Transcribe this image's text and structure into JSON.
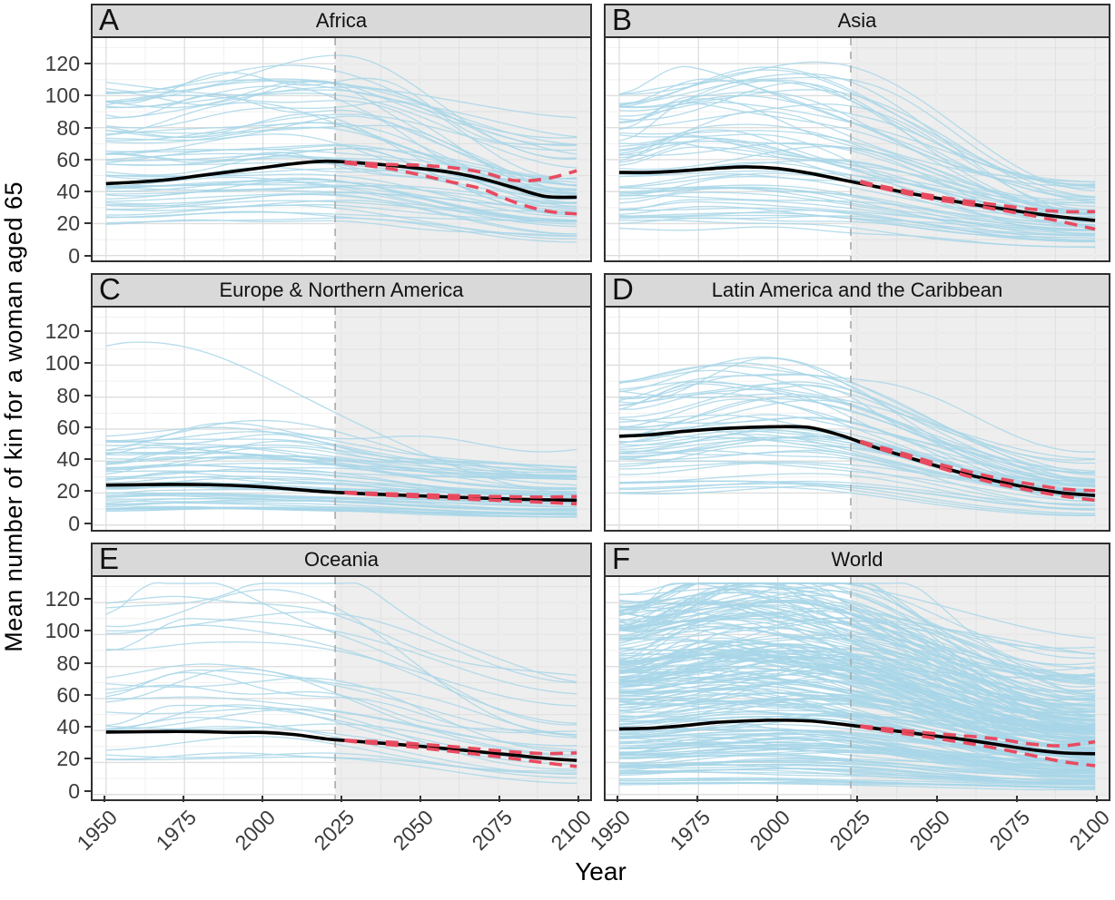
{
  "figure": {
    "ylabel": "Mean number of kin for a woman aged 65",
    "xlabel": "Year"
  },
  "axes": {
    "y_ticks": [
      0,
      20,
      40,
      60,
      80,
      100,
      120
    ],
    "x_ticks": [
      1950,
      1975,
      2000,
      2025,
      2050,
      2075,
      2100
    ],
    "x_range": [
      1950,
      2100
    ],
    "y_value_range": [
      -3,
      136
    ],
    "forecast_start": 2023,
    "grid": "major+minor"
  },
  "colors": {
    "country_line": "#a8d6e7",
    "mean_line": "#000000",
    "projection_bound": "#e84a5f",
    "strip_bg": "#d9d9d9",
    "panel_border": "#2f2f2f",
    "grid_major": "#dedede",
    "grid_minor": "#f1f1f1",
    "forecast_shade": "rgba(0,0,0,0.065)",
    "shade_grid": "rgba(255,255,255,0.55)",
    "forecast_divider": "#a8a8a8",
    "axis_text": "#3c3c3c"
  },
  "chart_data": [
    {
      "panel": "A",
      "title": "Africa",
      "type": "line",
      "x": [
        1950,
        1960,
        1970,
        1980,
        1990,
        2000,
        2010,
        2020,
        2030,
        2040,
        2050,
        2060,
        2070,
        2080,
        2090,
        2100
      ],
      "mean": [
        45,
        46,
        47.5,
        50,
        52.5,
        55,
        57.5,
        59,
        58,
        56.5,
        54.5,
        52,
        48,
        42.5,
        37,
        36.5
      ],
      "proj_years": [
        2026,
        2030,
        2040,
        2050,
        2060,
        2070,
        2080,
        2090,
        2100
      ],
      "upper": [
        58.5,
        58,
        57,
        56.5,
        55,
        52,
        47,
        48,
        53
      ],
      "lower": [
        58,
        57,
        54.5,
        50.5,
        46,
        41.5,
        33.5,
        28,
        26
      ],
      "ensemble": {
        "n": 58,
        "seed": 101,
        "start_min": 18,
        "start_max": 108,
        "start_bias": 1.0,
        "rise_max": 0.22,
        "peak_min": 1995,
        "peak_max": 2038,
        "end_min": 0.35,
        "end_max": 0.8
      }
    },
    {
      "panel": "B",
      "title": "Asia",
      "type": "line",
      "x": [
        1950,
        1960,
        1970,
        1980,
        1990,
        2000,
        2010,
        2020,
        2030,
        2040,
        2050,
        2060,
        2070,
        2080,
        2090,
        2100
      ],
      "mean": [
        52,
        52,
        53,
        54.5,
        55.5,
        54.5,
        51.5,
        47.5,
        43.5,
        39.5,
        36,
        32.5,
        29.5,
        26.5,
        24,
        22
      ],
      "proj_years": [
        2026,
        2030,
        2040,
        2050,
        2060,
        2070,
        2080,
        2090,
        2100
      ],
      "upper": [
        46.5,
        44.5,
        40.5,
        37,
        34,
        31.5,
        29,
        27.5,
        27.5
      ],
      "lower": [
        46,
        43.5,
        39,
        35,
        32,
        28.5,
        25,
        21,
        16.5
      ],
      "ensemble": {
        "n": 55,
        "seed": 202,
        "start_min": 12,
        "start_max": 100,
        "start_bias": 1.0,
        "rise_max": 0.25,
        "peak_min": 1970,
        "peak_max": 2012,
        "end_min": 0.22,
        "end_max": 0.55
      }
    },
    {
      "panel": "C",
      "title": "Europe & Northern America",
      "type": "line",
      "x": [
        1950,
        1960,
        1970,
        1980,
        1990,
        2000,
        2010,
        2020,
        2030,
        2040,
        2050,
        2060,
        2070,
        2080,
        2090,
        2100
      ],
      "mean": [
        25,
        25.2,
        25.4,
        25.3,
        24.8,
        23.8,
        22.3,
        20.8,
        19.8,
        19,
        18.2,
        17.5,
        16.8,
        16.2,
        15.8,
        15.5
      ],
      "proj_years": [
        2026,
        2030,
        2040,
        2050,
        2060,
        2070,
        2080,
        2090,
        2100
      ],
      "upper": [
        20.5,
        20.2,
        19.6,
        19,
        18.5,
        18,
        17.7,
        17.5,
        17.8
      ],
      "lower": [
        20.3,
        19.6,
        18.6,
        17.6,
        16.6,
        15.8,
        15,
        14.2,
        13.2
      ],
      "ensemble": {
        "n": 55,
        "seed": 303,
        "start_min": 9,
        "start_max": 58,
        "start_bias": 1.4,
        "rise_max": 0.18,
        "peak_min": 1960,
        "peak_max": 2000,
        "end_min": 0.45,
        "end_max": 0.8,
        "extra": [
          {
            "start": 112,
            "peak_year": 1956,
            "rise": 0.01,
            "end_frac": 0.18
          }
        ]
      }
    },
    {
      "panel": "D",
      "title": "Latin America and the Caribbean",
      "type": "line",
      "x": [
        1950,
        1960,
        1970,
        1980,
        1990,
        2000,
        2010,
        2020,
        2030,
        2040,
        2050,
        2060,
        2070,
        2080,
        2090,
        2100
      ],
      "mean": [
        55.5,
        56.5,
        58.5,
        60,
        61,
        61.5,
        61,
        56,
        49,
        43,
        37,
        31.5,
        27,
        23,
        20,
        18.5
      ],
      "proj_years": [
        2026,
        2030,
        2040,
        2050,
        2060,
        2070,
        2080,
        2090,
        2100
      ],
      "upper": [
        52.5,
        50,
        44.5,
        38.5,
        33.5,
        29,
        25.5,
        22.5,
        21.5
      ],
      "lower": [
        52,
        49,
        43,
        36.5,
        30.5,
        25.5,
        21.5,
        18,
        15.5
      ],
      "ensemble": {
        "n": 50,
        "seed": 404,
        "start_min": 18,
        "start_max": 88,
        "start_bias": 1.0,
        "rise_max": 0.28,
        "peak_min": 1975,
        "peak_max": 2012,
        "end_min": 0.22,
        "end_max": 0.5
      }
    },
    {
      "panel": "E",
      "title": "Oceania",
      "type": "line",
      "x": [
        1950,
        1960,
        1970,
        1980,
        1990,
        2000,
        2010,
        2020,
        2030,
        2040,
        2050,
        2060,
        2070,
        2080,
        2090,
        2100
      ],
      "mean": [
        39,
        39.2,
        39.4,
        39.3,
        38.8,
        38.8,
        37.5,
        34.8,
        33.2,
        31.8,
        30.2,
        28.4,
        26.5,
        24.6,
        22.6,
        21.3
      ],
      "proj_years": [
        2026,
        2030,
        2040,
        2050,
        2060,
        2070,
        2080,
        2090,
        2100
      ],
      "upper": [
        34,
        33.5,
        32.8,
        31.5,
        30,
        28.2,
        26.6,
        25.6,
        26
      ],
      "lower": [
        33.8,
        32.8,
        31.2,
        29.2,
        27,
        24.8,
        22.4,
        19.8,
        17.5
      ],
      "ensemble": {
        "n": 26,
        "seed": 505,
        "start_min": 15,
        "start_max": 122,
        "start_bias": 0.9,
        "rise_max": 0.3,
        "peak_min": 1970,
        "peak_max": 2015,
        "end_min": 0.25,
        "end_max": 0.6
      }
    },
    {
      "panel": "F",
      "title": "World",
      "type": "line",
      "x": [
        1950,
        1960,
        1970,
        1980,
        1990,
        2000,
        2010,
        2020,
        2030,
        2040,
        2050,
        2060,
        2070,
        2080,
        2090,
        2100
      ],
      "mean": [
        41,
        41.5,
        43,
        45,
        46,
        46.5,
        46,
        44,
        41.5,
        39,
        36.5,
        34,
        31,
        28,
        26,
        25.5
      ],
      "proj_years": [
        2026,
        2030,
        2040,
        2050,
        2060,
        2070,
        2080,
        2090,
        2100
      ],
      "upper": [
        43,
        42,
        40,
        38,
        36.5,
        34.5,
        31.5,
        30.5,
        33
      ],
      "lower": [
        42.5,
        41,
        38,
        35,
        32,
        28.5,
        24.5,
        20.5,
        18
      ],
      "ensemble": {
        "n": 215,
        "seed": 606,
        "start_min": 6,
        "start_max": 122,
        "start_bias": 1.0,
        "rise_max": 0.28,
        "peak_min": 1970,
        "peak_max": 2020,
        "end_min": 0.3,
        "end_max": 0.7
      }
    }
  ]
}
